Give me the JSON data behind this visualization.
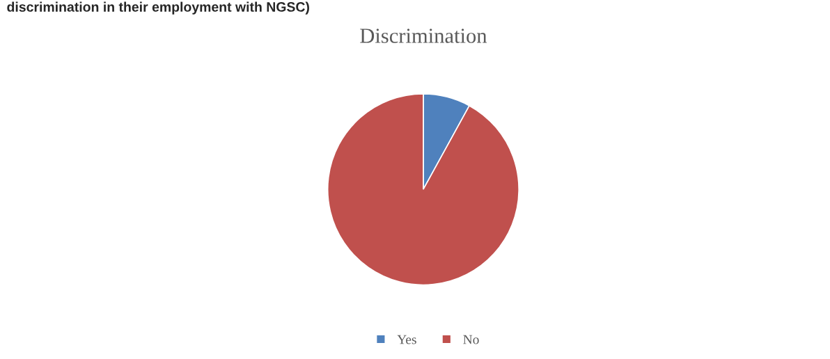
{
  "chart_data": {
    "type": "pie",
    "title": "Discrimination",
    "annotations": [
      "discrimination in their employment with NGSC)"
    ],
    "categories": [
      "Yes",
      "No"
    ],
    "values": [
      8,
      92
    ],
    "colors": [
      "#4f81bd",
      "#c0504d"
    ],
    "legend": "bottom"
  }
}
